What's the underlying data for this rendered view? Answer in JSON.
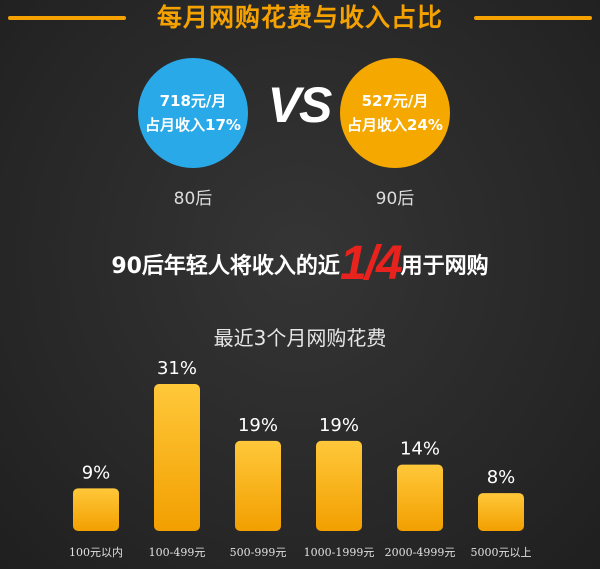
{
  "header": {
    "title": "每月网购花费与收入占比"
  },
  "comparison": {
    "left": {
      "amount": "718元/月",
      "share": "占月收入17%",
      "generation": "80后"
    },
    "vs": "VS",
    "right": {
      "amount": "527元/月",
      "share": "占月收入24%",
      "generation": "90后"
    }
  },
  "headline": {
    "pre": "90后年轻人将收入的近",
    "fraction": "1/4",
    "post": "用于网购"
  },
  "colors": {
    "accent": "#f5a200",
    "blue": "#2aa9e8",
    "highlight": "#e8231e",
    "background": "#2a2a2a"
  },
  "chart_data": {
    "type": "bar",
    "title": "最近3个月网购花费",
    "categories": [
      "100元以内",
      "100-499元",
      "500-999元",
      "1000-1999元",
      "2000-4999元",
      "5000元以上"
    ],
    "values": [
      9,
      31,
      19,
      19,
      14,
      8
    ],
    "data_labels": [
      "9%",
      "31%",
      "19%",
      "19%",
      "14%",
      "8%"
    ],
    "ylim": [
      0,
      31
    ],
    "grid": false,
    "bar_color": "#f7b500"
  }
}
